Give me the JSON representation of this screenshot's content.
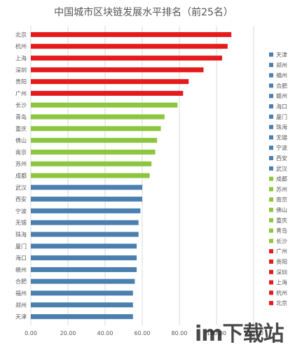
{
  "chart_data": {
    "type": "bar",
    "orientation": "horizontal",
    "title": "中国城市区块链发展水平排名（前25名）",
    "categories": [
      "北京",
      "杭州",
      "上海",
      "深圳",
      "贵阳",
      "广州",
      "长沙",
      "青岛",
      "重庆",
      "佛山",
      "南京",
      "苏州",
      "成都",
      "武汉",
      "西安",
      "宁波",
      "无锡",
      "珠海",
      "厦门",
      "海口",
      "赣州",
      "合肥",
      "福州",
      "郑州",
      "天津"
    ],
    "values": [
      108,
      106,
      103,
      93,
      85,
      82,
      79,
      72,
      70,
      68,
      67,
      65,
      64,
      60,
      60,
      59,
      58,
      58,
      57,
      57,
      57,
      56,
      55,
      55,
      55
    ],
    "colors": [
      "#e41a1c",
      "#e41a1c",
      "#e41a1c",
      "#e41a1c",
      "#e41a1c",
      "#e41a1c",
      "#8cc63f",
      "#8cc63f",
      "#8cc63f",
      "#8cc63f",
      "#8cc63f",
      "#8cc63f",
      "#8cc63f",
      "#4a7fb0",
      "#4a7fb0",
      "#4a7fb0",
      "#4a7fb0",
      "#4a7fb0",
      "#4a7fb0",
      "#4a7fb0",
      "#4a7fb0",
      "#4a7fb0",
      "#4a7fb0",
      "#4a7fb0",
      "#4a7fb0"
    ],
    "xlim": [
      0,
      120
    ],
    "xticks": [
      "0.00",
      "20.00",
      "40.00",
      "60.00",
      "80.00",
      "100.00",
      "120.00"
    ],
    "grid": true,
    "legend_position": "right",
    "legend": [
      {
        "label": "天津",
        "color": "#4a7fb0"
      },
      {
        "label": "郑州",
        "color": "#4a7fb0"
      },
      {
        "label": "福州",
        "color": "#4a7fb0"
      },
      {
        "label": "合肥",
        "color": "#4a7fb0"
      },
      {
        "label": "赣州",
        "color": "#4a7fb0"
      },
      {
        "label": "海口",
        "color": "#4a7fb0"
      },
      {
        "label": "厦门",
        "color": "#4a7fb0"
      },
      {
        "label": "珠海",
        "color": "#4a7fb0"
      },
      {
        "label": "无锡",
        "color": "#4a7fb0"
      },
      {
        "label": "宁波",
        "color": "#4a7fb0"
      },
      {
        "label": "西安",
        "color": "#4a7fb0"
      },
      {
        "label": "武汉",
        "color": "#4a7fb0"
      },
      {
        "label": "成都",
        "color": "#8cc63f"
      },
      {
        "label": "苏州",
        "color": "#8cc63f"
      },
      {
        "label": "南京",
        "color": "#8cc63f"
      },
      {
        "label": "佛山",
        "color": "#8cc63f"
      },
      {
        "label": "重庆",
        "color": "#8cc63f"
      },
      {
        "label": "青岛",
        "color": "#8cc63f"
      },
      {
        "label": "长沙",
        "color": "#8cc63f"
      },
      {
        "label": "广州",
        "color": "#e41a1c"
      },
      {
        "label": "贵阳",
        "color": "#e41a1c"
      },
      {
        "label": "深圳",
        "color": "#e41a1c"
      },
      {
        "label": "上海",
        "color": "#e41a1c"
      },
      {
        "label": "杭州",
        "color": "#e41a1c"
      },
      {
        "label": "北京",
        "color": "#e41a1c"
      }
    ]
  },
  "watermark": "im下载站"
}
